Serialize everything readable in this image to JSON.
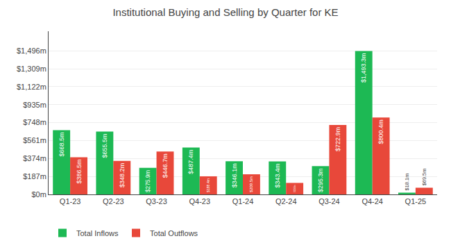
{
  "chart_data": {
    "type": "bar",
    "title": "Institutional Buying and Selling by Quarter for KE",
    "categories": [
      "Q1-23",
      "Q2-23",
      "Q3-23",
      "Q4-23",
      "Q1-24",
      "Q2-24",
      "Q3-24",
      "Q4-24",
      "Q1-25"
    ],
    "series": [
      {
        "name": "Total Inflows",
        "color": "#1db954",
        "values": [
          668.5,
          655.5,
          275.9,
          487.4,
          346.1,
          343.4,
          295.3,
          1493.3,
          18.1
        ],
        "value_labels": [
          "$668.5m",
          "$655.5m",
          "$275.9m",
          "$487.4m",
          "$346.1m",
          "$343.4m",
          "$295.3m",
          "$1,493.3m",
          "$18.1m"
        ]
      },
      {
        "name": "Total Outflows",
        "color": "#e8483a",
        "values": [
          386.5,
          348.2,
          446.7,
          188.4,
          209.5,
          119.8,
          722.9,
          800.4,
          69.5
        ],
        "value_labels": [
          "$386.5m",
          "$348.2m",
          "$446.7m",
          "$188.4m",
          "$209.5m",
          "$119.8m",
          "$722.9m",
          "$800.4m",
          "$69.5m"
        ]
      }
    ],
    "ylim": [
      0,
      1700
    ],
    "yticks": [
      {
        "value": 0,
        "label": "$0m"
      },
      {
        "value": 187,
        "label": "$187m"
      },
      {
        "value": 374,
        "label": "$374m"
      },
      {
        "value": 561,
        "label": "$561m"
      },
      {
        "value": 748,
        "label": "$748m"
      },
      {
        "value": 935,
        "label": "$935m"
      },
      {
        "value": 1122,
        "label": "$1,122m"
      },
      {
        "value": 1309,
        "label": "$1,309m"
      },
      {
        "value": 1496,
        "label": "$1,496m"
      }
    ],
    "grid": true,
    "legend": "bottom left",
    "data_labels": true
  }
}
